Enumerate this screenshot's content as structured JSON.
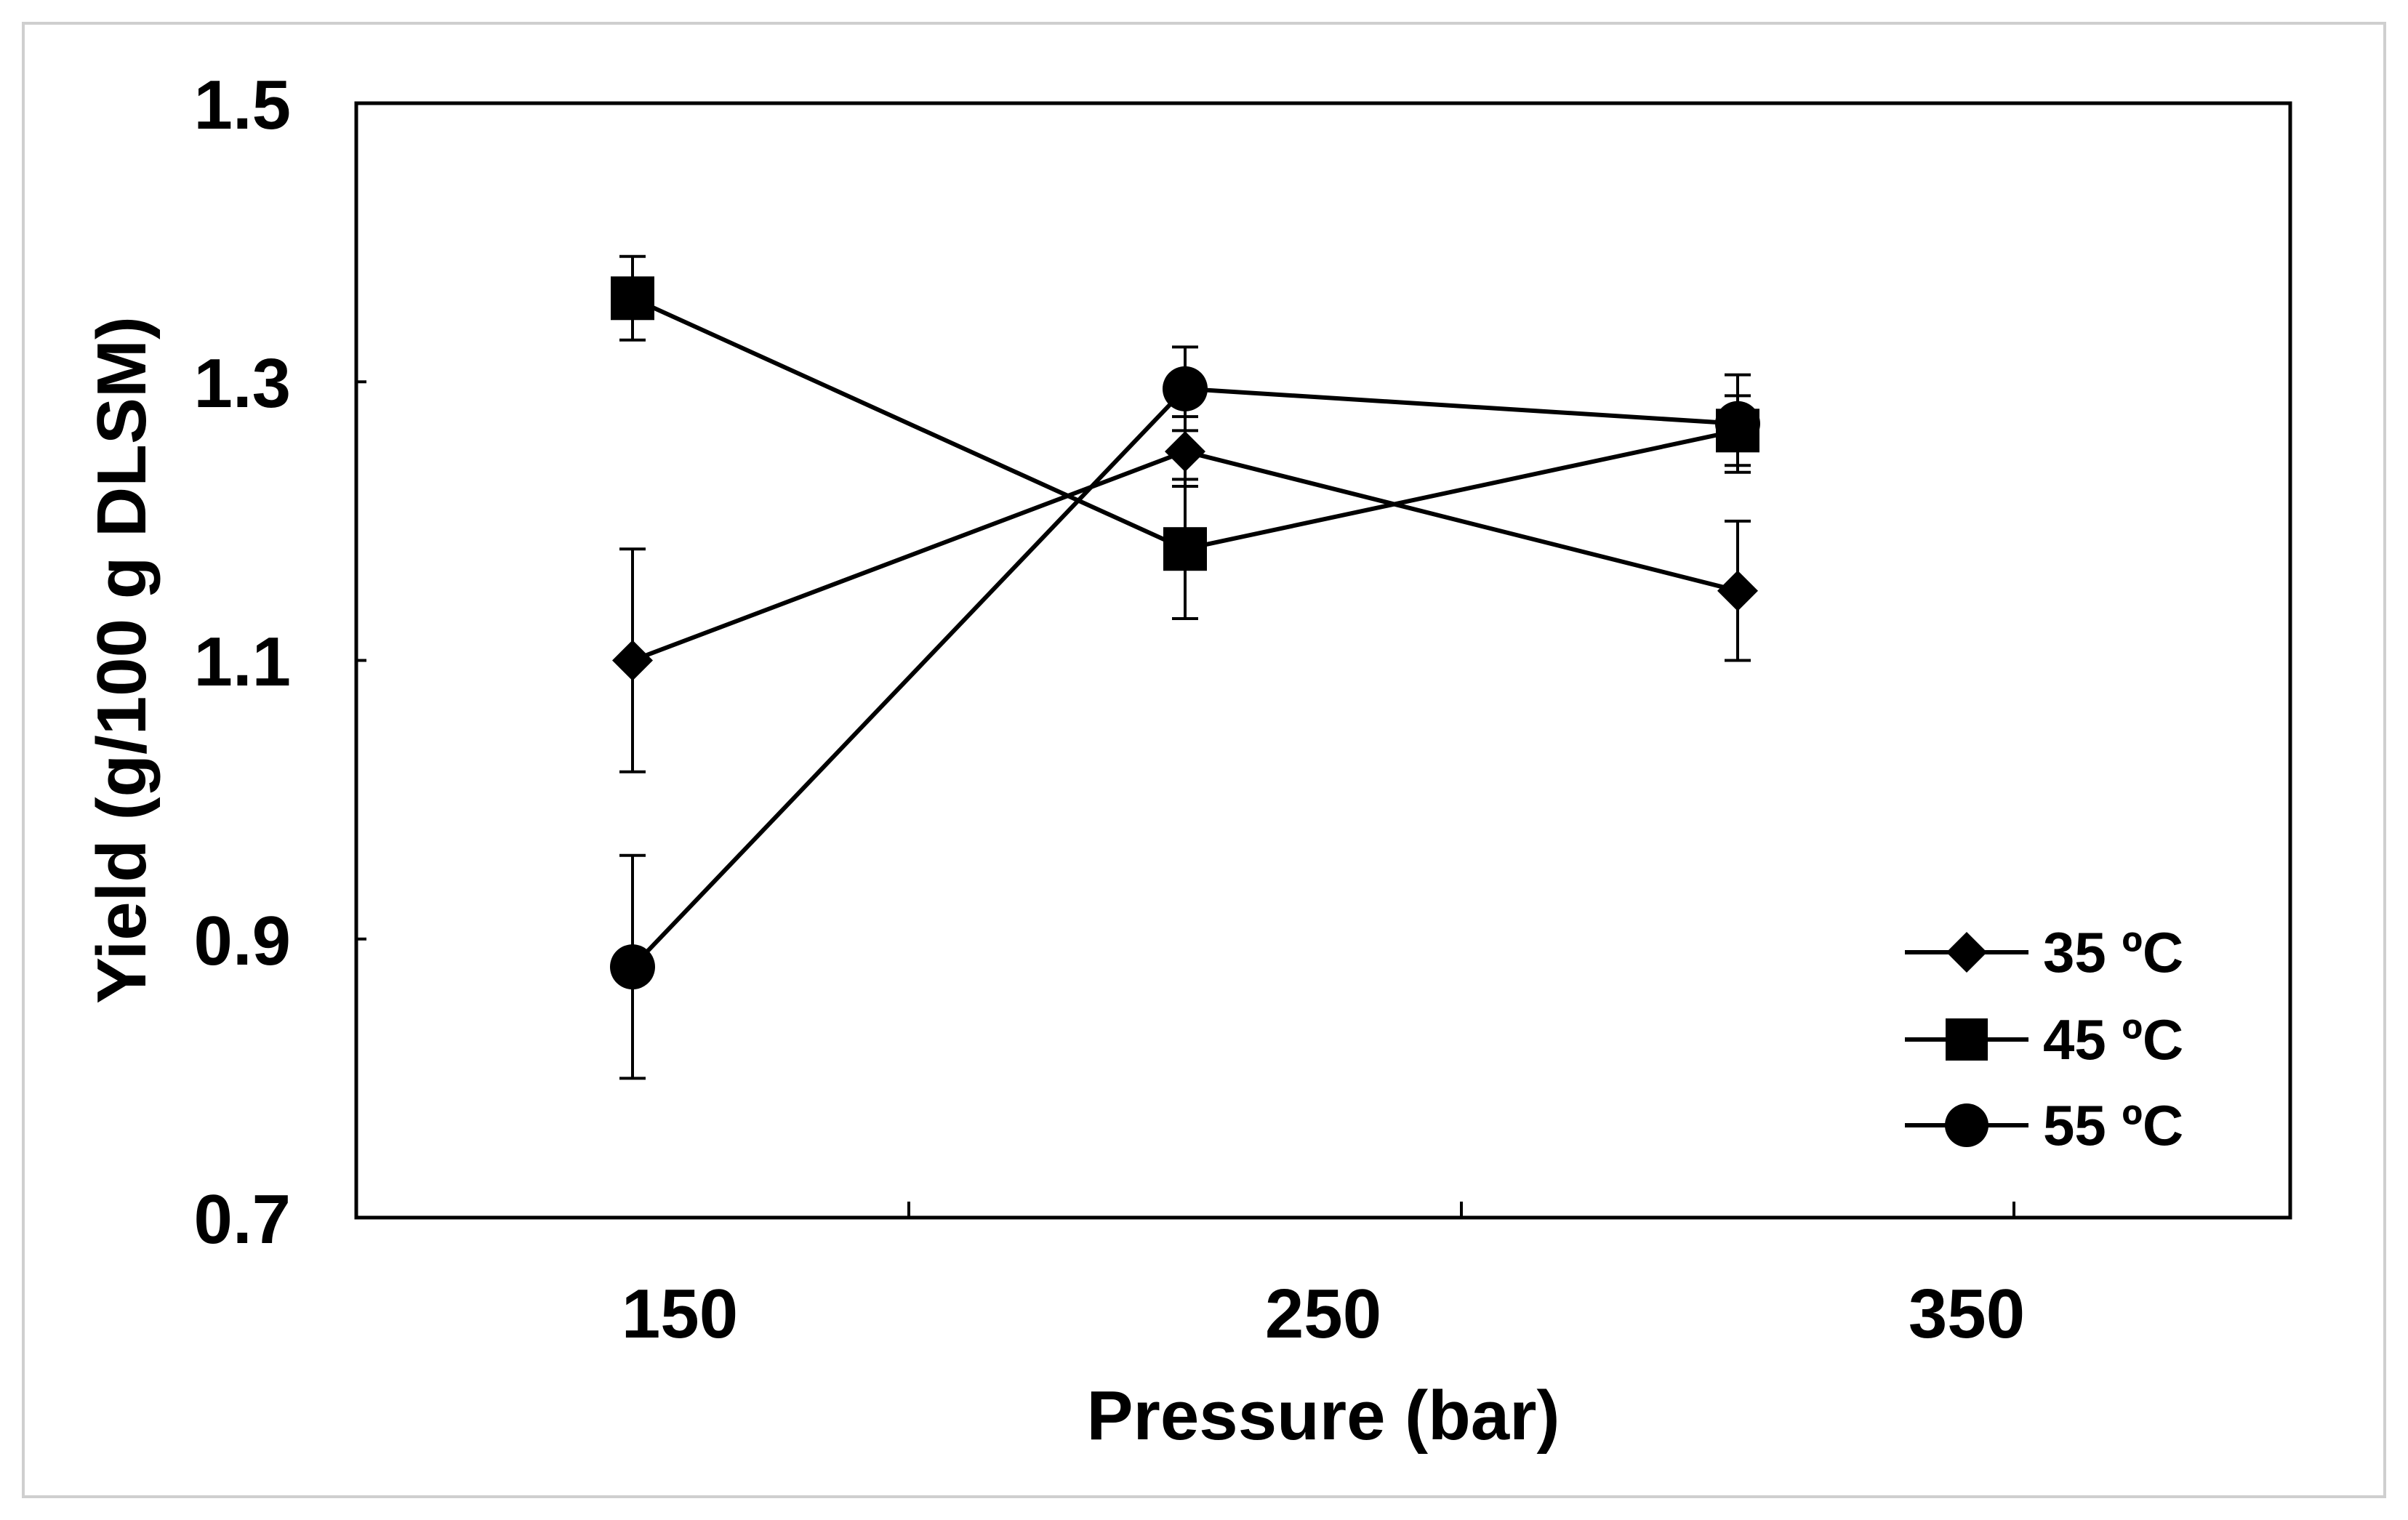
{
  "chart_data": {
    "type": "line",
    "title": "",
    "xlabel": "Pressure (bar)",
    "ylabel": "Yield (g/100 g DLSM)",
    "categories": [
      "150",
      "250",
      "350"
    ],
    "ylim": [
      0.7,
      1.5
    ],
    "yticks": [
      "0.7",
      "0.9",
      "1.1",
      "1.3",
      "1.5"
    ],
    "grid": false,
    "legend_position": "bottom-right",
    "series": [
      {
        "name": "35 ºC",
        "marker": "diamond",
        "values": [
          1.1,
          1.25,
          1.15
        ],
        "errors": [
          0.08,
          0.025,
          0.05
        ]
      },
      {
        "name": "45 ºC",
        "marker": "square",
        "values": [
          1.36,
          1.18,
          1.265
        ],
        "errors": [
          0.03,
          0.05,
          0.025
        ]
      },
      {
        "name": "55 ºC",
        "marker": "circle",
        "values": [
          0.88,
          1.295,
          1.27
        ],
        "errors": [
          0.08,
          0.03,
          0.035
        ]
      }
    ],
    "colors": {
      "line": "#000000",
      "axis": "#000000",
      "frame": "#cfcfcf"
    }
  }
}
